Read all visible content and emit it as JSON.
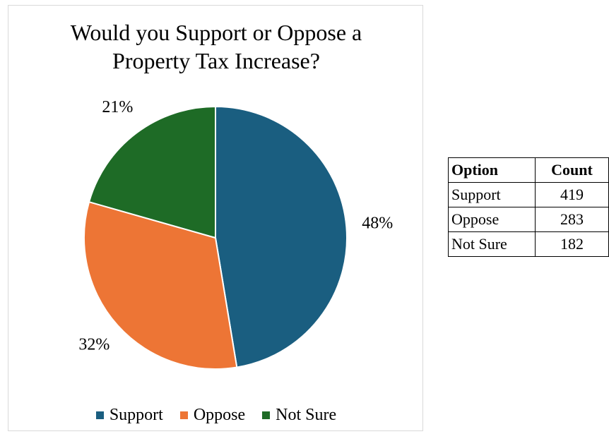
{
  "chart_data": {
    "type": "pie",
    "title_lines": [
      "Would you Support or Oppose a",
      "Property Tax Increase?"
    ],
    "categories": [
      "Support",
      "Oppose",
      "Not Sure"
    ],
    "values": [
      419,
      283,
      182
    ],
    "percent_labels": [
      "48%",
      "32%",
      "21%"
    ],
    "colors": [
      "#1a5e80",
      "#ed7535",
      "#1e6b26"
    ],
    "legend_position": "bottom",
    "start": "12 o'clock, clockwise"
  },
  "table": {
    "headers": [
      "Option",
      "Count"
    ],
    "rows": [
      {
        "option": "Support",
        "count": "419"
      },
      {
        "option": "Oppose",
        "count": "283"
      },
      {
        "option": "Not Sure",
        "count": "182"
      }
    ]
  }
}
